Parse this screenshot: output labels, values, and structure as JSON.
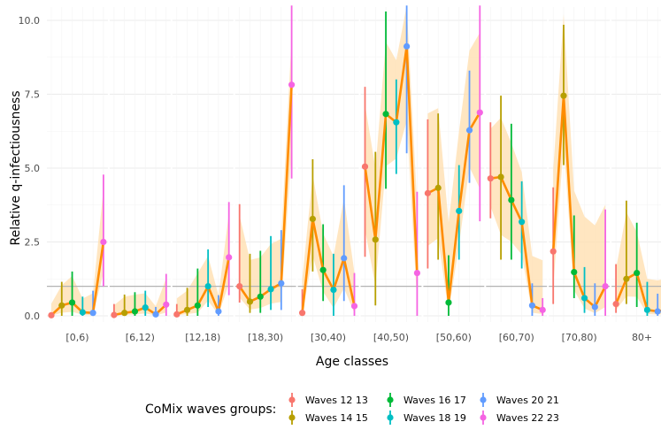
{
  "chart_data": {
    "type": "line",
    "ylabel": "Relative q-infectiousness",
    "xlabel": "Age classes",
    "ylim": [
      0,
      10.5
    ],
    "yticks": [
      {
        "value": 0,
        "label": "0.0"
      },
      {
        "value": 2.5,
        "label": "2.5"
      },
      {
        "value": 5,
        "label": "5.0"
      },
      {
        "value": 7.5,
        "label": "7.5"
      },
      {
        "value": 10,
        "label": "10.0"
      }
    ],
    "reference_line": 1,
    "panels": [
      "[0,6)",
      "[6,12)",
      "[12,18)",
      "[18,30)",
      "[30,40)",
      "[40,50)",
      "[50,60)",
      "[60,70)",
      "[70,80)",
      "80+"
    ],
    "legend_title": "CoMix waves groups:",
    "series": [
      {
        "name": "Waves 12 13",
        "color": "#F8766D",
        "values": [
          0.02,
          0.03,
          0.05,
          1.0,
          0.1,
          5.05,
          4.15,
          4.65,
          2.18,
          0.4
        ],
        "lower": [
          0.0,
          0.0,
          0.0,
          0.45,
          0.0,
          2.0,
          1.6,
          3.3,
          0.4,
          0.1
        ],
        "upper": [
          0.1,
          0.4,
          0.4,
          3.78,
          0.9,
          7.75,
          6.65,
          6.55,
          4.35,
          1.75
        ]
      },
      {
        "name": "Waves 14 15",
        "color": "#B79F00",
        "values": [
          0.35,
          0.1,
          0.2,
          0.48,
          3.28,
          2.58,
          4.33,
          4.7,
          7.45,
          1.25
        ],
        "lower": [
          0.0,
          0.0,
          0.0,
          0.1,
          1.5,
          0.35,
          1.9,
          1.9,
          5.1,
          0.4
        ],
        "upper": [
          1.15,
          0.72,
          0.95,
          2.1,
          5.3,
          5.55,
          6.85,
          7.45,
          9.85,
          3.9
        ]
      },
      {
        "name": "Waves 16 17",
        "color": "#00BA38",
        "values": [
          0.45,
          0.15,
          0.35,
          0.65,
          1.55,
          6.83,
          0.45,
          3.92,
          1.48,
          1.45
        ],
        "lower": [
          0.0,
          0.0,
          0.0,
          0.1,
          0.5,
          4.3,
          0.0,
          1.9,
          0.6,
          0.3
        ],
        "upper": [
          1.5,
          0.8,
          1.6,
          2.2,
          3.1,
          10.3,
          2.05,
          6.5,
          3.4,
          3.15
        ]
      },
      {
        "name": "Waves 18 19",
        "color": "#00BFC4",
        "values": [
          0.12,
          0.28,
          1.0,
          0.9,
          0.88,
          6.55,
          3.55,
          3.18,
          0.6,
          0.2
        ],
        "lower": [
          0.0,
          0.0,
          0.3,
          0.2,
          0.0,
          4.8,
          1.9,
          1.6,
          0.1,
          0.0
        ],
        "upper": [
          0.65,
          0.85,
          2.25,
          2.7,
          2.1,
          8.0,
          5.1,
          4.55,
          1.65,
          1.15
        ]
      },
      {
        "name": "Waves 20 21",
        "color": "#619CFF",
        "values": [
          0.1,
          0.05,
          0.15,
          1.1,
          1.95,
          9.12,
          6.28,
          0.35,
          0.3,
          0.15
        ],
        "lower": [
          0.0,
          0.0,
          0.0,
          0.2,
          0.5,
          5.5,
          4.5,
          0.0,
          0.0,
          0.0
        ],
        "upper": [
          0.85,
          0.3,
          0.7,
          2.9,
          4.42,
          10.5,
          8.3,
          1.1,
          1.1,
          0.75
        ]
      },
      {
        "name": "Waves 22 23",
        "color": "#F564E3",
        "values": [
          2.5,
          0.38,
          1.98,
          7.82,
          0.33,
          1.45,
          6.88,
          0.2,
          1.0,
          0.22
        ],
        "lower": [
          1.0,
          0.0,
          0.7,
          4.65,
          0.0,
          0.0,
          3.2,
          0.0,
          0.0,
          0.0
        ],
        "upper": [
          4.78,
          1.42,
          3.85,
          10.5,
          1.45,
          4.2,
          10.5,
          0.6,
          3.6,
          1.0
        ]
      }
    ],
    "median": [
      0.4,
      0.2,
      0.5,
      0.9,
      1.6,
      6.5,
      4.4,
      3.5,
      1.5,
      0.3
    ],
    "median_lower": [
      0.0,
      0.0,
      0.0,
      0.3,
      0.2,
      3.5,
      1.5,
      1.6,
      0.3,
      0.0
    ],
    "median_upper": [
      1.3,
      0.9,
      1.8,
      4.5,
      4.0,
      10.5,
      10.5,
      7.2,
      9.5,
      3.5
    ],
    "median_color": "#FF8C00",
    "ribbon_color": "#FFE0B2"
  }
}
